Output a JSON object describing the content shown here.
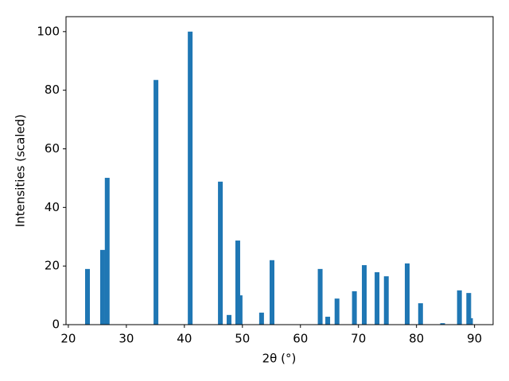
{
  "chart_data": {
    "type": "bar",
    "x_label": "2θ (°)",
    "y_label": "Intensities (scaled)",
    "color": "#1f77b4",
    "x": [
      23.3,
      25.9,
      26.7,
      35.1,
      41.0,
      46.2,
      47.7,
      49.2,
      49.6,
      53.3,
      55.1,
      63.4,
      64.7,
      66.3,
      69.3,
      71.0,
      73.2,
      74.8,
      78.4,
      80.7,
      84.5,
      87.4,
      89.0,
      89.3
    ],
    "values": [
      19.0,
      25.5,
      50.1,
      83.5,
      100,
      48.8,
      3.3,
      28.7,
      10.0,
      4.1,
      22.0,
      19.0,
      2.7,
      8.9,
      11.4,
      20.3,
      17.9,
      16.5,
      20.9,
      7.3,
      0.5,
      11.7,
      10.8,
      2.2
    ],
    "xlim": [
      19.6,
      93.2
    ],
    "ylim": [
      0,
      105.1
    ],
    "xticks": [
      20,
      30,
      40,
      50,
      60,
      70,
      80,
      90
    ],
    "yticks": [
      0,
      20,
      40,
      60,
      80,
      100
    ],
    "grid": false
  }
}
